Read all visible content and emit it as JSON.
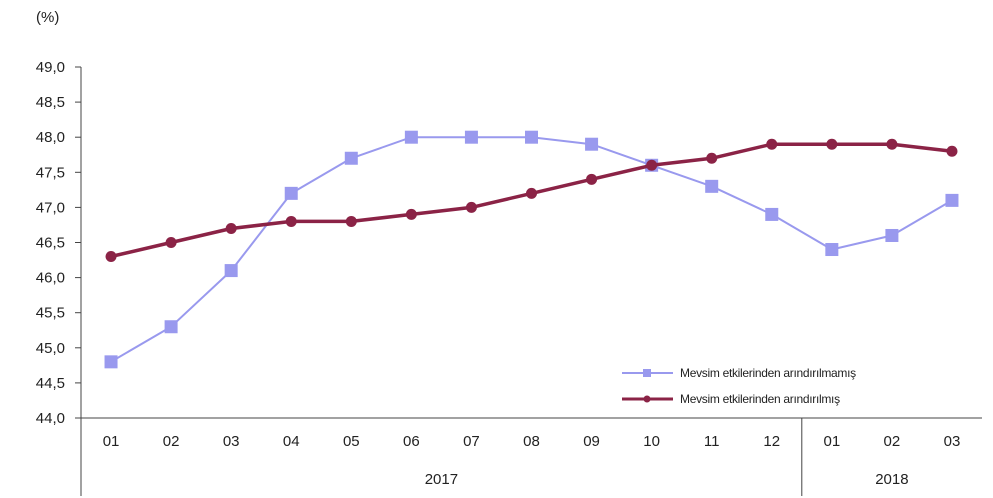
{
  "chart_data": {
    "type": "line",
    "unit_label": "(%)",
    "x": [
      "01",
      "02",
      "03",
      "04",
      "05",
      "06",
      "07",
      "08",
      "09",
      "10",
      "11",
      "12",
      "01",
      "02",
      "03"
    ],
    "year_groups": [
      {
        "label": "2017",
        "start_index": 0,
        "end_index": 11
      },
      {
        "label": "2018",
        "start_index": 12,
        "end_index": 14
      }
    ],
    "y_ticks": [
      "49,0",
      "48,5",
      "48,0",
      "47,5",
      "47,0",
      "46,5",
      "46,0",
      "45,5",
      "45,0",
      "44,5",
      "44,0"
    ],
    "ylim": [
      44.0,
      49.0
    ],
    "ystep": 0.5,
    "grid": false,
    "legend_position": "bottom-right",
    "series": [
      {
        "name": "Mevsim etkilerinden arındırılmamış",
        "color": "#9999ee",
        "marker": "square",
        "values": [
          44.8,
          45.3,
          46.1,
          47.2,
          47.7,
          48.0,
          48.0,
          48.0,
          47.9,
          47.6,
          47.3,
          46.9,
          46.4,
          46.6,
          47.1
        ]
      },
      {
        "name": "Mevsim etkilerinden arındırılmış",
        "color": "#8b2346",
        "marker": "circle",
        "values": [
          46.3,
          46.5,
          46.7,
          46.8,
          46.8,
          46.9,
          47.0,
          47.2,
          47.4,
          47.6,
          47.7,
          47.9,
          47.9,
          47.9,
          47.8
        ]
      }
    ]
  }
}
